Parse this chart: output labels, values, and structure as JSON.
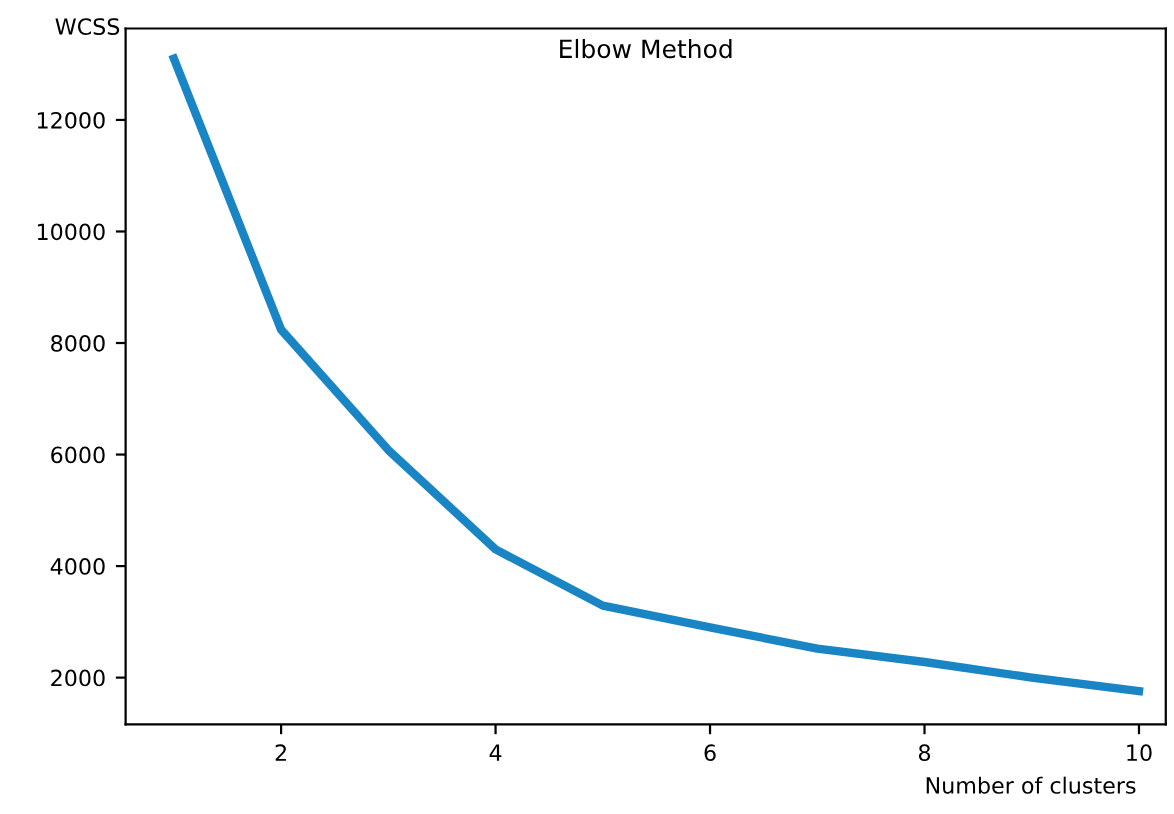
{
  "chart_data": {
    "type": "line",
    "title": "Elbow Method",
    "xlabel": "Number of clusters",
    "ylabel": "WCSS",
    "x": [
      1,
      2,
      3,
      4,
      5,
      6,
      7,
      8,
      9,
      10
    ],
    "series": [
      {
        "color": "#1a85c4",
        "values": [
          13100,
          8240,
          6080,
          4300,
          3290,
          2900,
          2520,
          2280,
          2000,
          1760
        ]
      }
    ],
    "xlim": [
      0.55,
      10.25
    ],
    "ylim": [
      1160,
      13640
    ],
    "xticks": [
      2,
      4,
      6,
      8,
      10
    ],
    "yticks": [
      2000,
      4000,
      6000,
      8000,
      10000,
      12000
    ],
    "grid": false,
    "legend": false,
    "marker": "none",
    "line_style": "solid"
  }
}
